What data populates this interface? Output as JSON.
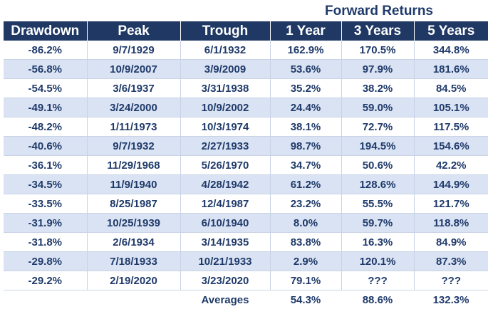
{
  "super_header": "Forward Returns",
  "columns": [
    "Drawdown",
    "Peak",
    "Trough",
    "1 Year",
    "3 Years",
    "5 Years"
  ],
  "rows": [
    [
      "-86.2%",
      "9/7/1929",
      "6/1/1932",
      "162.9%",
      "170.5%",
      "344.8%"
    ],
    [
      "-56.8%",
      "10/9/2007",
      "3/9/2009",
      "53.6%",
      "97.9%",
      "181.6%"
    ],
    [
      "-54.5%",
      "3/6/1937",
      "3/31/1938",
      "35.2%",
      "38.2%",
      "84.5%"
    ],
    [
      "-49.1%",
      "3/24/2000",
      "10/9/2002",
      "24.4%",
      "59.0%",
      "105.1%"
    ],
    [
      "-48.2%",
      "1/11/1973",
      "10/3/1974",
      "38.1%",
      "72.7%",
      "117.5%"
    ],
    [
      "-40.6%",
      "9/7/1932",
      "2/27/1933",
      "98.7%",
      "194.5%",
      "154.6%"
    ],
    [
      "-36.1%",
      "11/29/1968",
      "5/26/1970",
      "34.7%",
      "50.6%",
      "42.2%"
    ],
    [
      "-34.5%",
      "11/9/1940",
      "4/28/1942",
      "61.2%",
      "128.6%",
      "144.9%"
    ],
    [
      "-33.5%",
      "8/25/1987",
      "12/4/1987",
      "23.2%",
      "55.5%",
      "121.7%"
    ],
    [
      "-31.9%",
      "10/25/1939",
      "6/10/1940",
      "8.0%",
      "59.7%",
      "118.8%"
    ],
    [
      "-31.8%",
      "2/6/1934",
      "3/14/1935",
      "83.8%",
      "16.3%",
      "84.9%"
    ],
    [
      "-29.8%",
      "7/18/1933",
      "10/21/1933",
      "2.9%",
      "120.1%",
      "87.3%"
    ],
    [
      "-29.2%",
      "2/19/2020",
      "3/23/2020",
      "79.1%",
      "???",
      "???"
    ]
  ],
  "averages": {
    "label": "Averages",
    "one_year": "54.3%",
    "three_years": "88.6%",
    "five_years": "132.3%"
  },
  "colors": {
    "header_bg": "#1f3864",
    "stripe_bg": "#dae3f3",
    "text": "#1f3a6a"
  }
}
